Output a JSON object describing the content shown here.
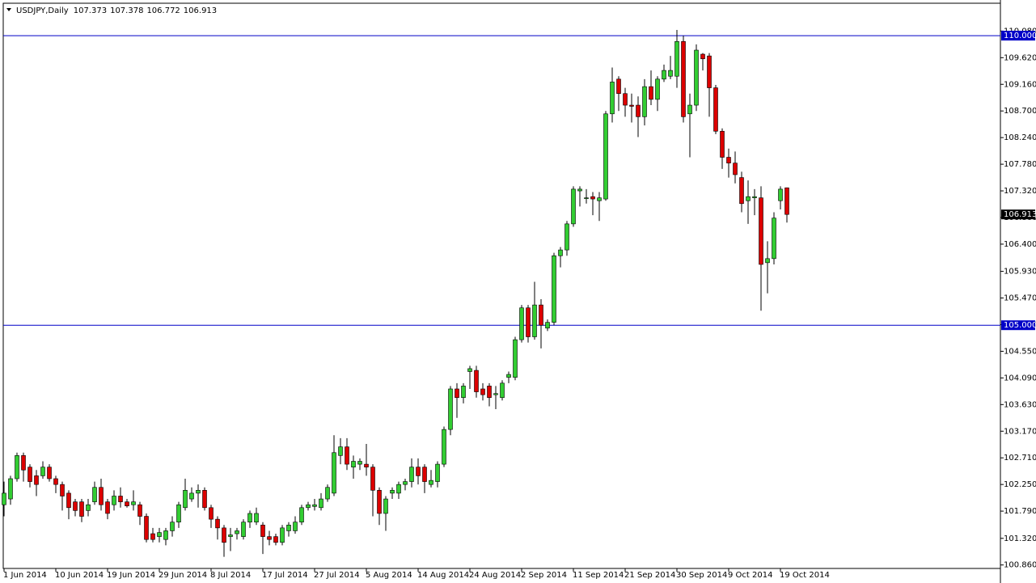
{
  "chart_data": {
    "type": "candlestick",
    "symbol": "USDJPY,Daily",
    "categories": [
      "1 Jun 2014",
      null,
      null,
      null,
      null,
      null,
      null,
      null,
      "10 Jun 2014",
      null,
      null,
      null,
      null,
      null,
      null,
      null,
      "19 Jun 2014",
      null,
      null,
      null,
      null,
      null,
      null,
      null,
      "29 Jun 2014",
      null,
      null,
      null,
      null,
      null,
      null,
      null,
      "8 Jul 2014",
      null,
      null,
      null,
      null,
      null,
      null,
      null,
      "17 Jul 2014",
      null,
      null,
      null,
      null,
      null,
      null,
      null,
      "27 Jul 2014",
      null,
      null,
      null,
      null,
      null,
      null,
      null,
      "5 Aug 2014",
      null,
      null,
      null,
      null,
      null,
      null,
      null,
      "14 Aug 2014",
      null,
      null,
      null,
      null,
      null,
      null,
      null,
      "24 Aug 2014",
      null,
      null,
      null,
      null,
      null,
      null,
      null,
      "2 Sep 2014",
      null,
      null,
      null,
      null,
      null,
      null,
      null,
      "11 Sep 2014",
      null,
      null,
      null,
      null,
      null,
      null,
      null,
      "21 Sep 2014",
      null,
      null,
      null,
      null,
      null,
      null,
      null,
      "30 Sep 2014",
      null,
      null,
      null,
      null,
      null,
      null,
      null,
      "9 Oct 2014",
      null,
      null,
      null,
      null,
      null,
      null,
      null,
      "19 Oct 2014",
      null
    ],
    "open": [
      101.9,
      102.0,
      102.35,
      102.75,
      102.55,
      102.4,
      102.4,
      102.55,
      102.35,
      102.25,
      102.1,
      101.95,
      101.95,
      101.8,
      101.95,
      102.2,
      101.95,
      101.9,
      102.05,
      101.95,
      101.9,
      101.9,
      101.7,
      101.4,
      101.35,
      101.3,
      101.45,
      101.6,
      101.85,
      102.0,
      102.1,
      102.15,
      101.85,
      101.65,
      101.5,
      101.35,
      101.4,
      101.35,
      101.6,
      101.6,
      101.55,
      101.35,
      101.35,
      101.25,
      101.45,
      101.45,
      101.6,
      101.85,
      101.87,
      101.85,
      102.0,
      102.1,
      102.75,
      102.9,
      102.55,
      102.6,
      102.6,
      102.55,
      102.15,
      101.75,
      102.1,
      102.1,
      102.25,
      102.3,
      102.55,
      102.55,
      102.25,
      102.3,
      102.6,
      103.2,
      103.9,
      103.75,
      104.2,
      104.22,
      103.9,
      103.95,
      103.8,
      103.75,
      104.1,
      104.1,
      104.75,
      105.3,
      104.8,
      105.35,
      104.95,
      105.05,
      106.2,
      106.3,
      106.75,
      107.32,
      107.2,
      107.22,
      107.15,
      107.18,
      108.65,
      109.25,
      109.0,
      108.8,
      108.8,
      108.6,
      109.12,
      108.9,
      109.25,
      109.3,
      109.3,
      109.9,
      108.65,
      108.8,
      109.68,
      109.65,
      109.1,
      108.35,
      107.9,
      107.8,
      107.55,
      107.15,
      107.2,
      107.2,
      106.08,
      106.15,
      107.15,
      107.373
    ],
    "high": [
      102.3,
      102.4,
      102.8,
      102.8,
      102.6,
      102.5,
      102.65,
      102.6,
      102.4,
      102.3,
      102.15,
      102.0,
      102.0,
      102.0,
      102.3,
      102.35,
      102.0,
      102.15,
      102.2,
      102.0,
      102.15,
      101.95,
      101.75,
      101.5,
      101.5,
      101.5,
      101.7,
      101.95,
      102.35,
      102.2,
      102.25,
      102.2,
      101.9,
      101.7,
      101.55,
      101.5,
      101.5,
      101.65,
      101.8,
      101.85,
      101.6,
      101.45,
      101.4,
      101.55,
      101.6,
      101.7,
      101.9,
      101.95,
      102.0,
      102.1,
      102.25,
      103.1,
      103.05,
      103.05,
      102.75,
      102.7,
      102.95,
      102.6,
      102.2,
      102.05,
      102.2,
      102.3,
      102.35,
      102.7,
      102.7,
      102.6,
      102.5,
      102.65,
      103.25,
      103.95,
      104.0,
      104.0,
      104.3,
      104.3,
      104.0,
      104.0,
      103.95,
      104.05,
      104.2,
      104.8,
      105.35,
      105.35,
      105.75,
      105.45,
      105.1,
      106.25,
      106.35,
      106.8,
      107.4,
      107.4,
      107.35,
      107.3,
      107.3,
      108.7,
      109.45,
      109.3,
      109.1,
      109.0,
      108.95,
      109.25,
      109.4,
      109.3,
      109.5,
      109.65,
      110.1,
      110.0,
      109.0,
      109.85,
      109.7,
      109.7,
      109.15,
      108.4,
      108.05,
      108.0,
      107.65,
      107.5,
      107.35,
      107.4,
      106.45,
      106.95,
      107.4,
      107.378
    ],
    "low": [
      101.7,
      101.9,
      102.3,
      102.3,
      102.2,
      102.05,
      102.35,
      102.3,
      102.1,
      101.8,
      101.65,
      101.7,
      101.6,
      101.7,
      101.9,
      101.8,
      101.65,
      101.8,
      101.85,
      101.85,
      101.8,
      101.55,
      101.25,
      101.25,
      101.25,
      101.2,
      101.35,
      101.5,
      101.8,
      101.95,
      101.85,
      101.8,
      101.5,
      101.3,
      101.0,
      101.1,
      101.3,
      101.3,
      101.5,
      101.55,
      101.05,
      101.2,
      101.2,
      101.2,
      101.35,
      101.4,
      101.55,
      101.8,
      101.8,
      101.8,
      101.95,
      102.05,
      102.6,
      102.5,
      102.35,
      102.5,
      102.4,
      101.7,
      101.55,
      101.45,
      102.0,
      102.0,
      102.15,
      102.2,
      102.25,
      102.1,
      102.2,
      102.2,
      102.55,
      103.1,
      103.4,
      103.65,
      103.9,
      103.75,
      103.7,
      103.6,
      103.55,
      103.7,
      104.0,
      104.05,
      104.7,
      104.7,
      104.75,
      104.6,
      104.9,
      105.0,
      106.0,
      106.2,
      106.7,
      107.05,
      107.1,
      106.9,
      106.8,
      107.15,
      108.5,
      108.7,
      108.6,
      108.5,
      108.25,
      108.45,
      108.8,
      108.7,
      109.2,
      109.25,
      109.1,
      108.5,
      107.9,
      108.7,
      109.4,
      108.6,
      108.3,
      107.7,
      107.55,
      107.45,
      106.95,
      106.75,
      106.9,
      105.25,
      105.55,
      106.05,
      107.0,
      106.772
    ],
    "close": [
      102.1,
      102.35,
      102.75,
      102.5,
      102.3,
      102.25,
      102.55,
      102.35,
      102.25,
      102.05,
      101.85,
      101.8,
      101.7,
      101.9,
      102.2,
      101.9,
      101.75,
      102.05,
      101.95,
      101.88,
      101.95,
      101.7,
      101.3,
      101.3,
      101.42,
      101.45,
      101.6,
      101.9,
      102.15,
      102.1,
      102.15,
      101.85,
      101.65,
      101.5,
      101.25,
      101.38,
      101.45,
      101.6,
      101.75,
      101.75,
      101.35,
      101.3,
      101.25,
      101.5,
      101.55,
      101.6,
      101.85,
      101.9,
      101.9,
      102.0,
      102.2,
      102.8,
      102.9,
      102.6,
      102.65,
      102.65,
      102.55,
      102.15,
      101.75,
      102.0,
      102.15,
      102.25,
      102.3,
      102.55,
      102.4,
      102.3,
      102.32,
      102.6,
      103.2,
      103.9,
      103.75,
      103.95,
      104.25,
      103.85,
      103.8,
      103.75,
      103.82,
      104.0,
      104.15,
      104.75,
      105.3,
      104.8,
      105.35,
      105.0,
      105.05,
      106.2,
      106.3,
      106.75,
      107.35,
      107.35,
      107.2,
      107.18,
      107.2,
      108.65,
      109.2,
      109.0,
      108.8,
      108.78,
      108.6,
      109.12,
      108.9,
      109.25,
      109.4,
      109.4,
      109.9,
      108.6,
      108.8,
      109.75,
      109.6,
      109.1,
      108.35,
      107.9,
      107.8,
      107.6,
      107.1,
      107.22,
      107.22,
      106.05,
      106.15,
      106.85,
      107.35,
      106.913
    ],
    "up_color": "#32cd32",
    "down_color": "#dc0000",
    "ylim": [
      100.8,
      110.56
    ],
    "yticks": [
      {
        "value": 110.08,
        "label": "110.080"
      },
      {
        "value": 109.62,
        "label": "109.620"
      },
      {
        "value": 109.16,
        "label": "109.160"
      },
      {
        "value": 108.7,
        "label": "108.700"
      },
      {
        "value": 108.24,
        "label": "108.240"
      },
      {
        "value": 107.78,
        "label": "107.780"
      },
      {
        "value": 107.32,
        "label": "107.320"
      },
      {
        "value": 106.86,
        "label": "106.860"
      },
      {
        "value": 106.4,
        "label": "106.400"
      },
      {
        "value": 105.93,
        "label": "105.930"
      },
      {
        "value": 105.47,
        "label": "105.470"
      },
      {
        "value": 105.01,
        "label": "105.010"
      },
      {
        "value": 104.55,
        "label": "104.550"
      },
      {
        "value": 104.09,
        "label": "104.090"
      },
      {
        "value": 103.63,
        "label": "103.630"
      },
      {
        "value": 103.17,
        "label": "103.170"
      },
      {
        "value": 102.71,
        "label": "102.710"
      },
      {
        "value": 102.25,
        "label": "102.250"
      },
      {
        "value": 101.79,
        "label": "101.790"
      },
      {
        "value": 101.32,
        "label": "101.320"
      },
      {
        "value": 100.86,
        "label": "100.860"
      }
    ],
    "hlines": [
      {
        "value": 110,
        "label": "110.000"
      },
      {
        "value": 105,
        "label": "105.000"
      }
    ],
    "hline_color": "#0000c8"
  }
}
